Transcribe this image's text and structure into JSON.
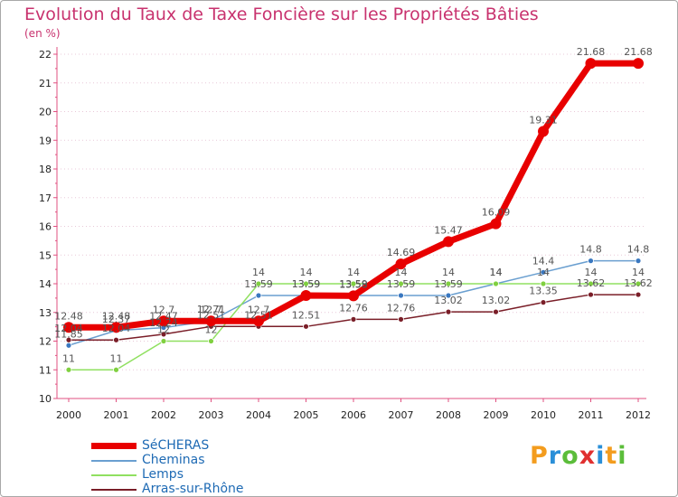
{
  "title": "Evolution du Taux de Taxe Foncière sur les Propriétés Bâties",
  "unit": "(en %)",
  "logo": {
    "text": "Proxiti",
    "letter_colors": [
      "#f39c1e",
      "#2a8fd8",
      "#5bbd3a",
      "#e03030",
      "#2a8fd8",
      "#f39c1e",
      "#5bbd3a"
    ]
  },
  "colors": {
    "axis": "#e05080",
    "grid": "#e8c8d8",
    "tick_text": "#222222",
    "label_text": "#555555"
  },
  "chart_data": {
    "type": "line",
    "title": "Evolution du Taux de Taxe Foncière sur les Propriétés Bâties",
    "xlabel": "",
    "ylabel": "(en %)",
    "ylim": [
      10,
      22
    ],
    "yticks": [
      10,
      11,
      12,
      13,
      14,
      15,
      16,
      17,
      18,
      19,
      20,
      21,
      22
    ],
    "categories": [
      "2000",
      "2001",
      "2002",
      "2003",
      "2004",
      "2005",
      "2006",
      "2007",
      "2008",
      "2009",
      "2010",
      "2011",
      "2012"
    ],
    "legend_position": "bottom-left",
    "series": [
      {
        "name": "SéCHERAS",
        "color": "#e80000",
        "marker_fill": "#e80000",
        "width": 7,
        "values": [
          12.48,
          12.48,
          12.7,
          12.7,
          12.7,
          13.59,
          13.58,
          14.69,
          15.47,
          16.09,
          19.31,
          21.68,
          21.68
        ],
        "labels": [
          "12.48",
          "12.48",
          "12.7",
          "12.7",
          "12.7",
          "13.59",
          "13.58",
          "14.69",
          "15.47",
          "16.09",
          "19.31",
          "21.68",
          "21.68"
        ]
      },
      {
        "name": "Cheminas",
        "color": "#6a9fd0",
        "marker_fill": "#3a78c0",
        "width": 1.5,
        "values": [
          11.85,
          12.37,
          12.47,
          12.71,
          13.59,
          13.59,
          13.59,
          13.59,
          13.59,
          14.0,
          14.4,
          14.8,
          14.8
        ],
        "labels": [
          "11.85",
          "12.37",
          "12.47",
          "12.71",
          "13.59",
          "13.59",
          "13.59",
          "13.59",
          "13.59",
          "14",
          "14.4",
          "14.8",
          "14.8"
        ]
      },
      {
        "name": "Lemps",
        "color": "#90e060",
        "marker_fill": "#80d040",
        "width": 1.5,
        "values": [
          11,
          11,
          12,
          12,
          14,
          14,
          14,
          14,
          14,
          14,
          14,
          14,
          14
        ],
        "labels": [
          "11",
          "11",
          "12",
          "12",
          "14",
          "14",
          "14",
          "14",
          "14",
          "14",
          "14",
          "14",
          "14"
        ]
      },
      {
        "name": "Arras-sur-Rhône",
        "color": "#7a1e28",
        "marker_fill": "#7a1e28",
        "width": 1.5,
        "values": [
          12.04,
          12.04,
          12.24,
          12.51,
          12.51,
          12.51,
          12.76,
          12.76,
          13.02,
          13.02,
          13.35,
          13.62,
          13.62
        ],
        "labels": [
          "12.04",
          "12.04",
          "12.24",
          "12.51",
          "12.51",
          "12.51",
          "12.76",
          "12.76",
          "13.02",
          "13.02",
          "13.35",
          "13.62",
          "13.62"
        ]
      }
    ]
  }
}
